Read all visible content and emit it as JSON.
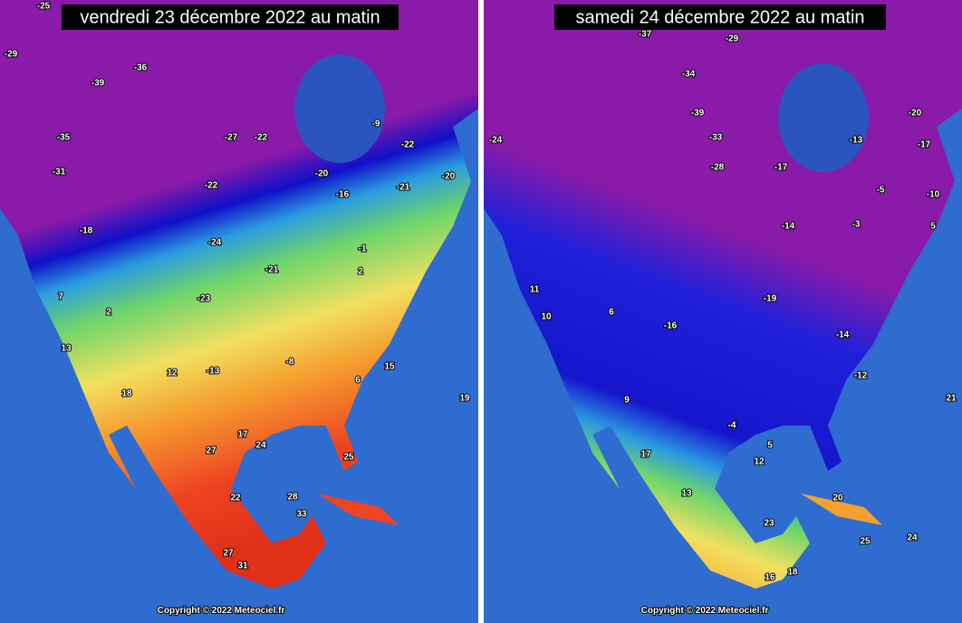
{
  "panels": [
    {
      "title": "vendredi 23 décembre 2022 au matin",
      "copyright": "Copyright © 2022 Meteociel.fr",
      "labels": [
        -25,
        -29,
        -36,
        -39,
        -35,
        -27,
        -22,
        -31,
        -22,
        -20,
        -9,
        -22,
        -21,
        -20,
        -16,
        -18,
        -24,
        -21,
        -23,
        -1,
        2,
        7,
        2,
        13,
        -13,
        -8,
        6,
        18,
        12,
        17,
        24,
        27,
        22,
        28,
        33,
        27,
        31,
        15,
        19,
        25
      ]
    },
    {
      "title": "samedi 24 décembre 2022 au matin",
      "copyright": "Copyright © 2022 Meteociel.fr",
      "labels": [
        -37,
        -29,
        -34,
        -39,
        -24,
        -33,
        -28,
        -17,
        -13,
        -17,
        -20,
        -5,
        -10,
        -14,
        -3,
        5,
        11,
        10,
        6,
        -16,
        -19,
        -14,
        -12,
        9,
        -4,
        5,
        17,
        12,
        13,
        20,
        21,
        23,
        16,
        24,
        25,
        18
      ]
    }
  ]
}
